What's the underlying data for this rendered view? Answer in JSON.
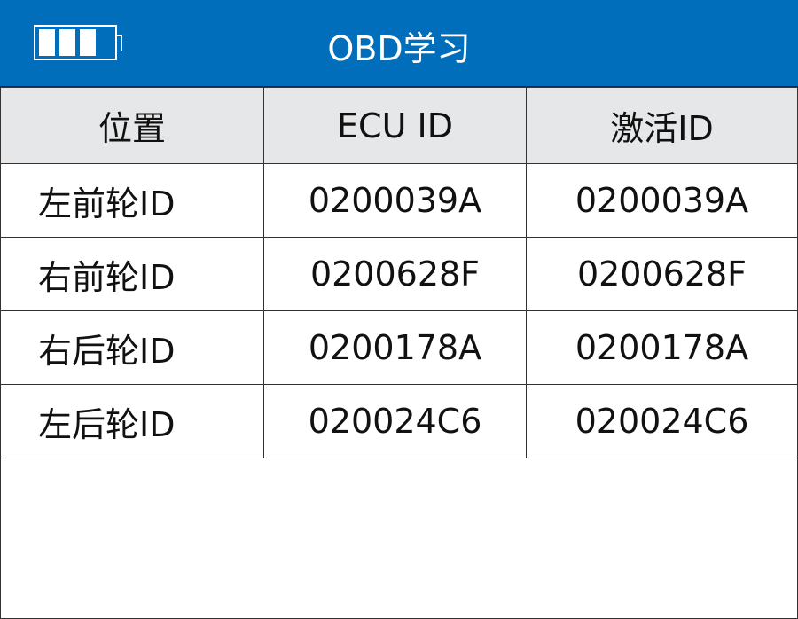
{
  "header": {
    "title": "OBD学习",
    "battery_icon": "battery-icon",
    "battery_level": 0.75,
    "color": "#006EBB"
  },
  "table": {
    "columns": [
      "位置",
      "ECU ID",
      "激活ID"
    ],
    "rows": [
      [
        "左前轮ID",
        "0200039A",
        "0200039A"
      ],
      [
        "右前轮ID",
        "0200628F",
        "0200628F"
      ],
      [
        "右后轮ID",
        "0200178A",
        "0200178A"
      ],
      [
        "左后轮ID",
        "020024C6",
        "020024C6"
      ]
    ]
  }
}
